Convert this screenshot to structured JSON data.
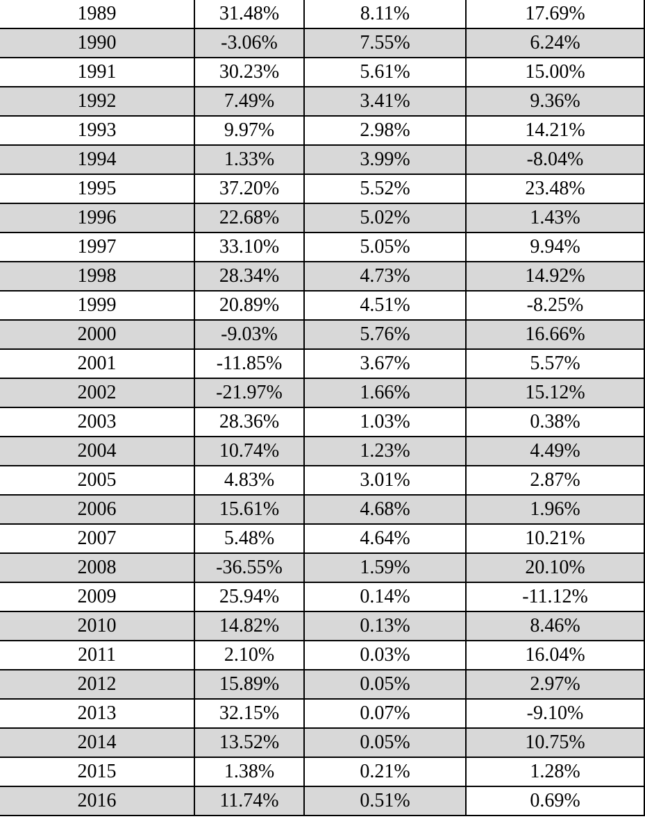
{
  "rows": [
    {
      "year": "1989",
      "col1": "31.48%",
      "col2": "8.11%",
      "col3": "17.69%"
    },
    {
      "year": "1990",
      "col1": "-3.06%",
      "col2": "7.55%",
      "col3": "6.24%"
    },
    {
      "year": "1991",
      "col1": "30.23%",
      "col2": "5.61%",
      "col3": "15.00%"
    },
    {
      "year": "1992",
      "col1": "7.49%",
      "col2": "3.41%",
      "col3": "9.36%"
    },
    {
      "year": "1993",
      "col1": "9.97%",
      "col2": "2.98%",
      "col3": "14.21%"
    },
    {
      "year": "1994",
      "col1": "1.33%",
      "col2": "3.99%",
      "col3": "-8.04%"
    },
    {
      "year": "1995",
      "col1": "37.20%",
      "col2": "5.52%",
      "col3": "23.48%"
    },
    {
      "year": "1996",
      "col1": "22.68%",
      "col2": "5.02%",
      "col3": "1.43%"
    },
    {
      "year": "1997",
      "col1": "33.10%",
      "col2": "5.05%",
      "col3": "9.94%"
    },
    {
      "year": "1998",
      "col1": "28.34%",
      "col2": "4.73%",
      "col3": "14.92%"
    },
    {
      "year": "1999",
      "col1": "20.89%",
      "col2": "4.51%",
      "col3": "-8.25%"
    },
    {
      "year": "2000",
      "col1": "-9.03%",
      "col2": "5.76%",
      "col3": "16.66%"
    },
    {
      "year": "2001",
      "col1": "-11.85%",
      "col2": "3.67%",
      "col3": "5.57%"
    },
    {
      "year": "2002",
      "col1": "-21.97%",
      "col2": "1.66%",
      "col3": "15.12%"
    },
    {
      "year": "2003",
      "col1": "28.36%",
      "col2": "1.03%",
      "col3": "0.38%"
    },
    {
      "year": "2004",
      "col1": "10.74%",
      "col2": "1.23%",
      "col3": "4.49%"
    },
    {
      "year": "2005",
      "col1": "4.83%",
      "col2": "3.01%",
      "col3": "2.87%"
    },
    {
      "year": "2006",
      "col1": "15.61%",
      "col2": "4.68%",
      "col3": "1.96%"
    },
    {
      "year": "2007",
      "col1": "5.48%",
      "col2": "4.64%",
      "col3": "10.21%"
    },
    {
      "year": "2008",
      "col1": "-36.55%",
      "col2": "1.59%",
      "col3": "20.10%"
    },
    {
      "year": "2009",
      "col1": "25.94%",
      "col2": "0.14%",
      "col3": "-11.12%"
    },
    {
      "year": "2010",
      "col1": "14.82%",
      "col2": "0.13%",
      "col3": "8.46%"
    },
    {
      "year": "2011",
      "col1": "2.10%",
      "col2": "0.03%",
      "col3": "16.04%"
    },
    {
      "year": "2012",
      "col1": "15.89%",
      "col2": "0.05%",
      "col3": "2.97%"
    },
    {
      "year": "2013",
      "col1": "32.15%",
      "col2": "0.07%",
      "col3": "-9.10%"
    },
    {
      "year": "2014",
      "col1": "13.52%",
      "col2": "0.05%",
      "col3": "10.75%"
    },
    {
      "year": "2015",
      "col1": "1.38%",
      "col2": "0.21%",
      "col3": "1.28%"
    },
    {
      "year": "2016",
      "col1": "11.74%",
      "col2": "0.51%",
      "col3": "0.69%"
    }
  ],
  "colors": {
    "shaded_row": "#d8d8d8",
    "rule": "#000000"
  }
}
